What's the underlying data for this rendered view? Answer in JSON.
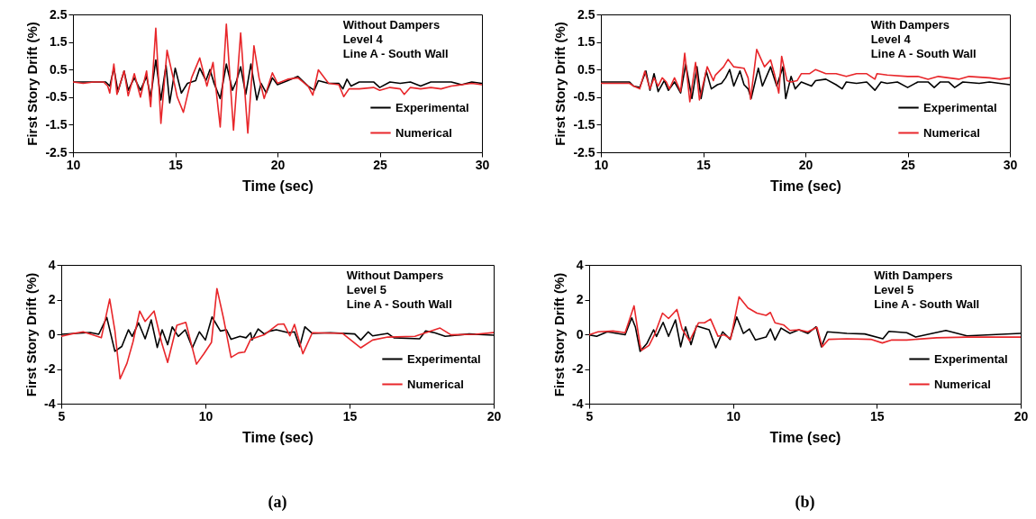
{
  "chart_data": [
    {
      "type": "line",
      "xlabel": "Time (sec)",
      "ylabel": "First Story Drift (%)",
      "annotations": [
        "Without Dampers",
        "Level 4",
        "Line A - South Wall"
      ],
      "xlim": [
        10,
        30
      ],
      "xticks": [
        10,
        15,
        20,
        25,
        30
      ],
      "ylim": [
        -2.5,
        2.5
      ],
      "yticks": [
        -2.5,
        -1.5,
        -0.5,
        0.5,
        1.5,
        2.5
      ],
      "legend": "bottom right",
      "series": [
        {
          "name": "Experimental",
          "color": "#000000",
          "x": [
            10,
            10.5,
            11,
            11.6,
            11.8,
            12.0,
            12.2,
            12.5,
            12.7,
            13.0,
            13.3,
            13.6,
            13.8,
            14.05,
            14.3,
            14.55,
            14.73,
            15.0,
            15.3,
            15.6,
            16.0,
            16.2,
            16.5,
            16.7,
            16.9,
            17.2,
            17.5,
            17.8,
            18.0,
            18.2,
            18.45,
            18.7,
            18.99,
            19.2,
            19.45,
            19.75,
            20.0,
            20.5,
            21.0,
            21.5,
            21.8,
            22.0,
            22.5,
            23.0,
            23.2,
            23.4,
            23.6,
            24.0,
            24.7,
            25.0,
            25.5,
            26.0,
            26.5,
            27.0,
            27.5,
            28.0,
            28.5,
            29.0,
            29.5,
            30
          ],
          "values": [
            0.05,
            0.05,
            0.05,
            0.05,
            -0.1,
            0.55,
            -0.3,
            0.45,
            -0.25,
            0.2,
            -0.25,
            0.25,
            -0.5,
            0.85,
            -0.6,
            0.65,
            -0.71,
            0.55,
            -0.35,
            0,
            0.1,
            0.55,
            0.1,
            0.5,
            0,
            -0.55,
            0.7,
            -0.25,
            0.1,
            0.6,
            -0.4,
            0.7,
            -0.6,
            0,
            -0.35,
            0.2,
            -0.05,
            0.1,
            0.25,
            -0.1,
            -0.25,
            0.1,
            0,
            0,
            -0.2,
            0.15,
            -0.1,
            0.05,
            0.05,
            -0.15,
            0.05,
            0,
            0.05,
            -0.1,
            0.05,
            0.05,
            0.05,
            -0.05,
            0.05,
            0
          ]
        },
        {
          "name": "Numerical",
          "color": "#e8262a",
          "x": [
            10,
            10.5,
            11,
            11.5,
            11.7,
            11.8,
            12.0,
            12.15,
            12.5,
            12.7,
            13.0,
            13.3,
            13.6,
            13.8,
            14.05,
            14.3,
            14.6,
            14.9,
            15.1,
            15.4,
            15.8,
            16.2,
            16.55,
            16.85,
            17.2,
            17.5,
            17.85,
            18.2,
            18.55,
            18.85,
            19.1,
            19.35,
            19.75,
            20.0,
            20.5,
            21.0,
            21.5,
            21.73,
            22.0,
            22.5,
            23.0,
            23.24,
            23.5,
            24.0,
            24.7,
            25.0,
            25.5,
            26.0,
            26.2,
            26.5,
            27.0,
            27.5,
            28.0,
            28.5,
            29.0,
            29.5,
            30
          ],
          "values": [
            0.05,
            0,
            0.05,
            0.05,
            -0.1,
            -0.35,
            0.7,
            -0.4,
            0.45,
            -0.45,
            0.35,
            -0.5,
            0.45,
            -0.85,
            2.0,
            -1.45,
            1.2,
            0.2,
            -0.5,
            -1.05,
            0.2,
            0.92,
            -0.1,
            0.76,
            -1.58,
            2.15,
            -1.7,
            1.83,
            -1.8,
            1.36,
            0.2,
            -0.55,
            0.38,
            0,
            0.15,
            0.2,
            -0.1,
            -0.43,
            0.49,
            0,
            -0.05,
            -0.48,
            -0.2,
            -0.2,
            -0.15,
            -0.25,
            -0.15,
            -0.2,
            -0.4,
            -0.15,
            -0.2,
            -0.15,
            -0.2,
            -0.1,
            -0.05,
            0,
            -0.05
          ]
        }
      ]
    },
    {
      "type": "line",
      "xlabel": "Time (sec)",
      "ylabel": "First Story Drift (%)",
      "annotations": [
        "With Dampers",
        "Level 4",
        "Line A - South Wall"
      ],
      "xlim": [
        10,
        30
      ],
      "xticks": [
        10,
        15,
        20,
        25,
        30
      ],
      "ylim": [
        -2.5,
        2.5
      ],
      "yticks": [
        -2.5,
        -1.5,
        -0.5,
        0.5,
        1.5,
        2.5
      ],
      "legend": "bottom right",
      "series": [
        {
          "name": "Experimental",
          "color": "#000000",
          "x": [
            10,
            11.4,
            11.6,
            11.9,
            12.2,
            12.4,
            12.6,
            12.8,
            13.1,
            13.3,
            13.6,
            13.9,
            14.15,
            14.45,
            14.7,
            14.9,
            15.15,
            15.4,
            15.7,
            15.9,
            16.1,
            16.3,
            16.5,
            16.8,
            17.0,
            17.2,
            17.35,
            17.7,
            17.9,
            18.3,
            18.6,
            18.9,
            19.04,
            19.3,
            19.5,
            19.8,
            20.3,
            20.5,
            21.0,
            21.5,
            21.8,
            22.0,
            22.5,
            23.0,
            23.4,
            23.7,
            24.0,
            24.5,
            25.0,
            25.5,
            26.0,
            26.3,
            26.6,
            27.0,
            27.3,
            27.7,
            28.5,
            29.0,
            29.5,
            30
          ],
          "values": [
            0.05,
            0.05,
            -0.1,
            -0.15,
            0.45,
            -0.25,
            0.35,
            -0.3,
            0.1,
            -0.25,
            0.05,
            -0.35,
            0.7,
            -0.55,
            0.6,
            -0.55,
            0.45,
            -0.2,
            -0.05,
            0,
            0.2,
            0.5,
            -0.1,
            0.45,
            -0.05,
            -0.2,
            -0.55,
            0.55,
            -0.1,
            0.6,
            -0.1,
            0.6,
            -0.55,
            0.25,
            -0.2,
            0.05,
            -0.1,
            0.1,
            0.15,
            -0.05,
            -0.2,
            0.05,
            0,
            0.05,
            -0.25,
            0.05,
            0,
            0.05,
            -0.15,
            0.05,
            0.05,
            -0.15,
            0.05,
            0.05,
            -0.15,
            0.05,
            0,
            0.05,
            0,
            -0.05
          ]
        },
        {
          "name": "Numerical",
          "color": "#e8262a",
          "x": [
            10,
            11.4,
            11.6,
            11.9,
            12.15,
            12.4,
            12.6,
            12.8,
            13.0,
            13.2,
            13.35,
            13.6,
            13.9,
            14.1,
            14.35,
            14.63,
            14.82,
            15.2,
            15.5,
            15.6,
            16.0,
            16.22,
            16.5,
            17.0,
            17.2,
            17.32,
            17.62,
            18.0,
            18.3,
            18.5,
            18.7,
            18.84,
            19.1,
            19.3,
            19.6,
            19.8,
            20.2,
            20.5,
            21.0,
            21.5,
            22.0,
            22.5,
            23.0,
            23.4,
            23.5,
            24.0,
            25.0,
            25.5,
            26.0,
            26.5,
            27.0,
            27.5,
            28.0,
            29.0,
            29.5,
            30
          ],
          "values": [
            0,
            0,
            -0.1,
            -0.2,
            0.44,
            -0.2,
            0.2,
            -0.1,
            0.2,
            0.05,
            -0.2,
            0.2,
            -0.3,
            1.09,
            -0.67,
            0.76,
            -0.6,
            0.6,
            0.1,
            0.3,
            0.6,
            0.87,
            0.6,
            0.55,
            0.2,
            -0.58,
            1.23,
            0.6,
            0.85,
            0.3,
            -0.35,
            0.98,
            0.1,
            0.05,
            0.1,
            0.35,
            0.35,
            0.5,
            0.35,
            0.35,
            0.25,
            0.35,
            0.35,
            0.15,
            0.35,
            0.3,
            0.25,
            0.25,
            0.15,
            0.25,
            0.2,
            0.15,
            0.25,
            0.2,
            0.15,
            0.2
          ]
        }
      ]
    },
    {
      "type": "line",
      "xlabel": "Time (sec)",
      "ylabel": "First Story Drift (%)",
      "subtitle": "(a)",
      "annotations": [
        "Without Dampers",
        "Level 5",
        "Line A - South Wall"
      ],
      "xlim": [
        5,
        20
      ],
      "xticks": [
        5,
        10,
        15,
        20
      ],
      "ylim": [
        -4,
        4
      ],
      "yticks": [
        -4,
        -2,
        0,
        2,
        4
      ],
      "legend": "bottom right",
      "series": [
        {
          "name": "Experimental",
          "color": "#000000",
          "x": [
            5,
            5.5,
            6.0,
            6.3,
            6.58,
            6.86,
            7.1,
            7.33,
            7.46,
            7.68,
            7.91,
            8.12,
            8.33,
            8.5,
            8.69,
            8.85,
            9.06,
            9.3,
            9.55,
            9.79,
            10.0,
            10.23,
            10.52,
            10.73,
            10.89,
            11.2,
            11.41,
            11.57,
            11.62,
            11.83,
            12.04,
            12.25,
            12.46,
            12.88,
            13.09,
            13.27,
            13.45,
            13.71,
            14.34,
            15.18,
            15.39,
            15.65,
            15.8,
            16.33,
            16.54,
            17.43,
            17.64,
            17.95,
            18.32,
            19.15,
            20
          ],
          "values": [
            0,
            0.05,
            0.1,
            0,
            0.97,
            -0.98,
            -0.7,
            0.26,
            -0.12,
            0.66,
            -0.26,
            0.83,
            -0.76,
            0.26,
            -0.6,
            0.43,
            -0.12,
            0.26,
            -0.78,
            0.14,
            -0.33,
            1.0,
            0.19,
            0.26,
            -0.29,
            -0.12,
            -0.2,
            0.09,
            -0.33,
            0.31,
            0.02,
            0.19,
            0.26,
            0.09,
            0.14,
            -0.72,
            0.43,
            0.05,
            0.09,
            0.02,
            -0.33,
            0.14,
            -0.09,
            0.05,
            -0.2,
            -0.26,
            0.19,
            0.09,
            -0.12,
            0.02,
            -0.05
          ]
        },
        {
          "name": "Numerical",
          "color": "#e8262a",
          "x": [
            5,
            5.35,
            5.76,
            6.08,
            6.39,
            6.68,
            6.86,
            7.04,
            7.28,
            7.49,
            7.72,
            7.91,
            8.22,
            8.48,
            8.69,
            9.01,
            9.32,
            9.69,
            9.95,
            10.21,
            10.4,
            10.63,
            10.89,
            11.15,
            11.36,
            11.57,
            12.04,
            12.51,
            12.72,
            12.93,
            13.09,
            13.38,
            13.71,
            14.76,
            15.39,
            15.8,
            16.33,
            17.27,
            18.14,
            18.52,
            19.36,
            20
          ],
          "values": [
            -0.12,
            0.02,
            0.14,
            -0.03,
            -0.2,
            2.03,
            0.22,
            -2.57,
            -1.67,
            -0.43,
            1.34,
            0.74,
            1.34,
            -0.47,
            -1.62,
            0.52,
            0.69,
            -1.72,
            -1.12,
            -0.47,
            2.64,
            0.91,
            -1.33,
            -1.07,
            -1.03,
            -0.29,
            -0.03,
            0.57,
            0.6,
            -0.09,
            0.57,
            -1.12,
            0.09,
            0.05,
            -0.78,
            -0.33,
            -0.16,
            -0.12,
            0.36,
            -0.03,
            0,
            0.1
          ]
        }
      ]
    },
    {
      "type": "line",
      "xlabel": "Time (sec)",
      "ylabel": "First Story Drift (%)",
      "subtitle": "(b)",
      "annotations": [
        "With Dampers",
        "Level 5",
        "Line A - South Wall"
      ],
      "xlim": [
        5,
        20
      ],
      "xticks": [
        5,
        10,
        15,
        20
      ],
      "ylim": [
        -4,
        4
      ],
      "yticks": [
        -4,
        -2,
        0,
        2,
        4
      ],
      "legend": "bottom right",
      "series": [
        {
          "name": "Experimental",
          "color": "#000000",
          "x": [
            5,
            5.26,
            5.63,
            6.25,
            6.48,
            6.61,
            6.77,
            7.0,
            7.24,
            7.34,
            7.57,
            7.76,
            8.0,
            8.18,
            8.35,
            8.54,
            8.73,
            9.17,
            9.4,
            9.64,
            9.9,
            10.13,
            10.36,
            10.57,
            10.78,
            11.15,
            11.3,
            11.46,
            11.67,
            11.98,
            12.29,
            12.6,
            12.89,
            13.07,
            13.28,
            13.96,
            14.58,
            15.21,
            15.42,
            16.04,
            16.35,
            17.4,
            18.13,
            20
          ],
          "values": [
            -0.03,
            -0.12,
            0.14,
            -0.03,
            0.95,
            0.4,
            -0.98,
            -0.55,
            0.26,
            -0.12,
            0.69,
            -0.12,
            0.83,
            -0.72,
            0.43,
            -0.6,
            0.48,
            0.26,
            -0.78,
            0.14,
            -0.29,
            1.0,
            0.05,
            0.31,
            -0.33,
            -0.16,
            0.31,
            -0.33,
            0.36,
            0.05,
            0.26,
            0.05,
            0.43,
            -0.72,
            0.14,
            0.05,
            0.02,
            -0.26,
            0.17,
            0.09,
            -0.16,
            0.22,
            -0.09,
            0.05
          ]
        },
        {
          "name": "Numerical",
          "color": "#e8262a",
          "x": [
            5,
            5.31,
            5.83,
            6.25,
            6.56,
            6.77,
            6.82,
            7.08,
            7.29,
            7.55,
            7.76,
            8.05,
            8.23,
            8.49,
            8.8,
            9.01,
            9.22,
            9.48,
            9.69,
            9.92,
            10.21,
            10.52,
            10.83,
            11.15,
            11.3,
            11.46,
            11.77,
            11.98,
            12.29,
            12.6,
            12.92,
            13.1,
            13.33,
            13.96,
            14.79,
            15.19,
            15.52,
            16.04,
            17.08,
            18.13,
            20
          ],
          "values": [
            -0.03,
            0.14,
            0.19,
            0.09,
            1.64,
            -0.64,
            -0.93,
            -0.64,
            0.05,
            1.22,
            0.91,
            1.43,
            0.31,
            -0.38,
            0.66,
            0.66,
            0.88,
            -0.12,
            -0.03,
            -0.26,
            2.16,
            1.52,
            1.22,
            1.09,
            1.26,
            0.66,
            0.53,
            0.22,
            0.26,
            0.14,
            0.4,
            -0.72,
            -0.29,
            -0.26,
            -0.29,
            -0.5,
            -0.33,
            -0.33,
            -0.2,
            -0.16,
            -0.16
          ]
        }
      ]
    }
  ]
}
